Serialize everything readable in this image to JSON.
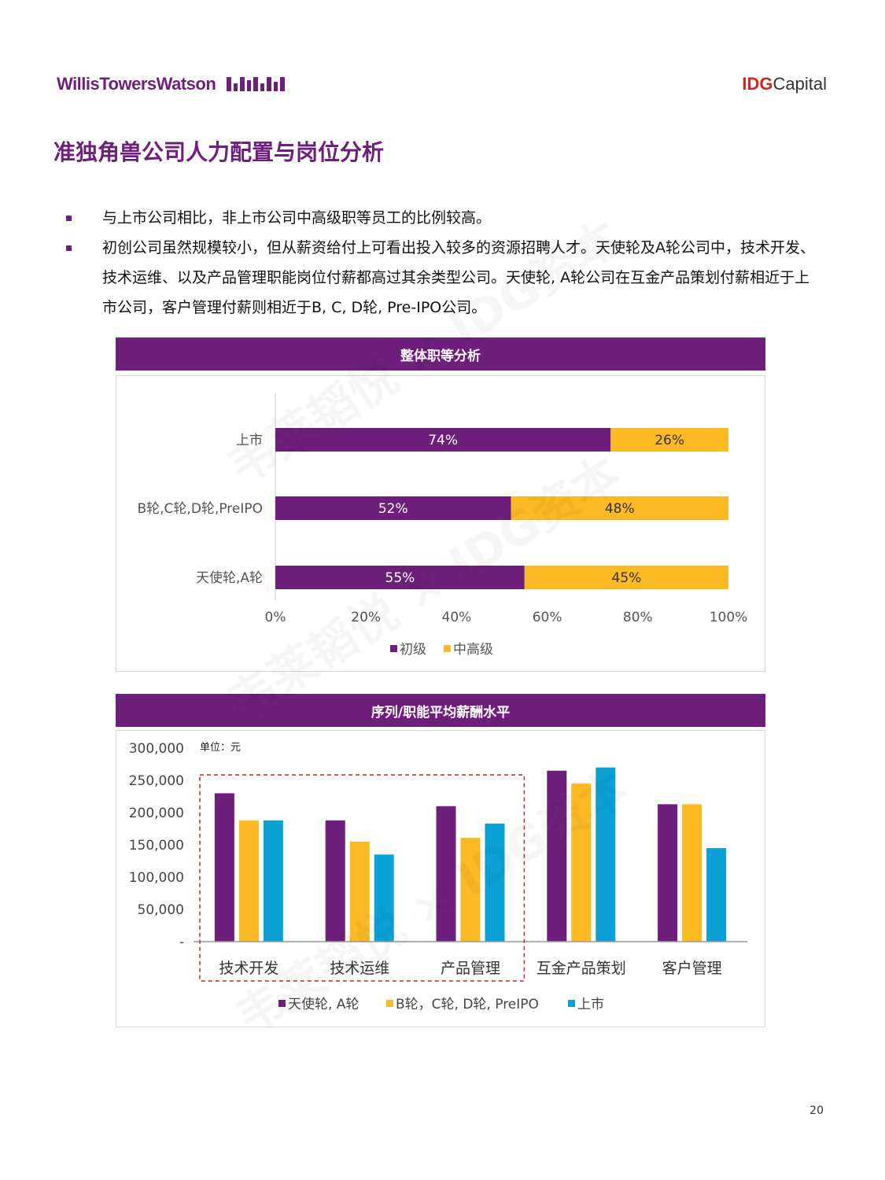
{
  "header": {
    "left_logo_text": "WillisTowersWatson",
    "right_logo_idg": "IDG",
    "right_logo_capital": "Capital"
  },
  "title": "准独角兽公司人力配置与岗位分析",
  "bullets": [
    "与上市公司相比，非上市公司中高级职等员工的比例较高。",
    "初创公司虽然规模较小，但从薪资给付上可看出投入较多的资源招聘人才。天使轮及A轮公司中，技术开发、技术运维、以及产品管理职能岗位付薪都高过其余类型公司。天使轮, A轮公司在互金产品策划付薪相近于上市公司，客户管理付薪则相近于B, C, D轮, Pre-IPO公司。"
  ],
  "colors": {
    "purple": "#6e1f7c",
    "yellow": "#fbb923",
    "blue": "#0ba1d6"
  },
  "chart_data": [
    {
      "type": "bar",
      "orientation": "horizontal",
      "stacked": true,
      "percent": true,
      "title": "整体职等分析",
      "categories": [
        "上市",
        "B轮,C轮,D轮,PreIPO",
        "天使轮,A轮"
      ],
      "series": [
        {
          "name": "初级",
          "values": [
            74,
            52,
            55
          ],
          "labels": [
            "74%",
            "52%",
            "55%"
          ]
        },
        {
          "name": "中高级",
          "values": [
            26,
            48,
            45
          ],
          "labels": [
            "26%",
            "48%",
            "45%"
          ]
        }
      ],
      "xlim": [
        0,
        100
      ],
      "xticks": [
        "0%",
        "20%",
        "40%",
        "60%",
        "80%",
        "100%"
      ],
      "legend": "bottom"
    },
    {
      "type": "bar",
      "title": "序列/职能平均薪酬水平",
      "unit_label": "单位：元",
      "categories": [
        "技术开发",
        "技术运维",
        "产品管理",
        "互金产品策划",
        "客户管理"
      ],
      "series": [
        {
          "name": "天使轮, A轮",
          "values": [
            230000,
            188000,
            210000,
            265000,
            213000
          ]
        },
        {
          "name": "B轮，C轮, D轮, PreIPO",
          "values": [
            188000,
            155000,
            161000,
            245000,
            213000
          ]
        },
        {
          "name": "上市",
          "values": [
            188000,
            135000,
            183000,
            270000,
            145000
          ]
        }
      ],
      "ylim": [
        0,
        300000
      ],
      "yticks": [
        "-",
        "50,000",
        "100,000",
        "150,000",
        "200,000",
        "250,000",
        "300,000"
      ],
      "highlight_categories": [
        "技术开发",
        "技术运维",
        "产品管理"
      ],
      "legend": "bottom"
    }
  ],
  "page_number": "20"
}
